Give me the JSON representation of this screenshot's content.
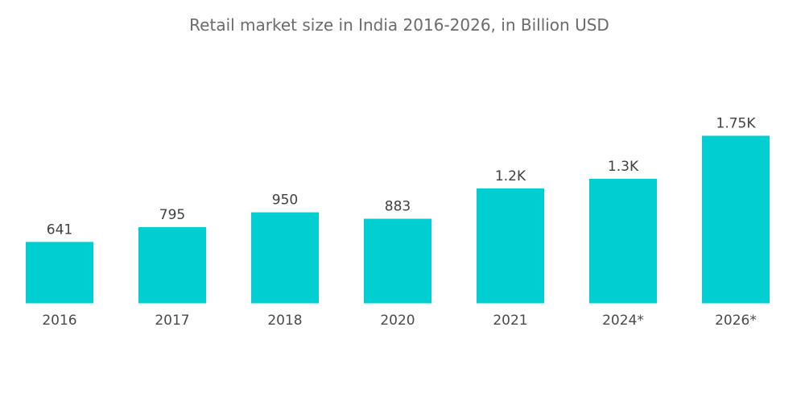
{
  "chart_data": {
    "type": "bar",
    "title": "Retail market size in India 2016-2026, in Billion USD",
    "xlabel": "",
    "ylabel": "",
    "categories": [
      "2016",
      "2017",
      "2018",
      "2020",
      "2021",
      "2024*",
      "2026*"
    ],
    "values": [
      641,
      795,
      950,
      883,
      1200,
      1300,
      1750
    ],
    "value_labels": [
      "641",
      "795",
      "950",
      "883",
      "1.2K",
      "1.3K",
      "1.75K"
    ],
    "ylim": [
      0,
      1750
    ],
    "grid": false,
    "legend": "none",
    "bar_color": "#00CED1"
  }
}
